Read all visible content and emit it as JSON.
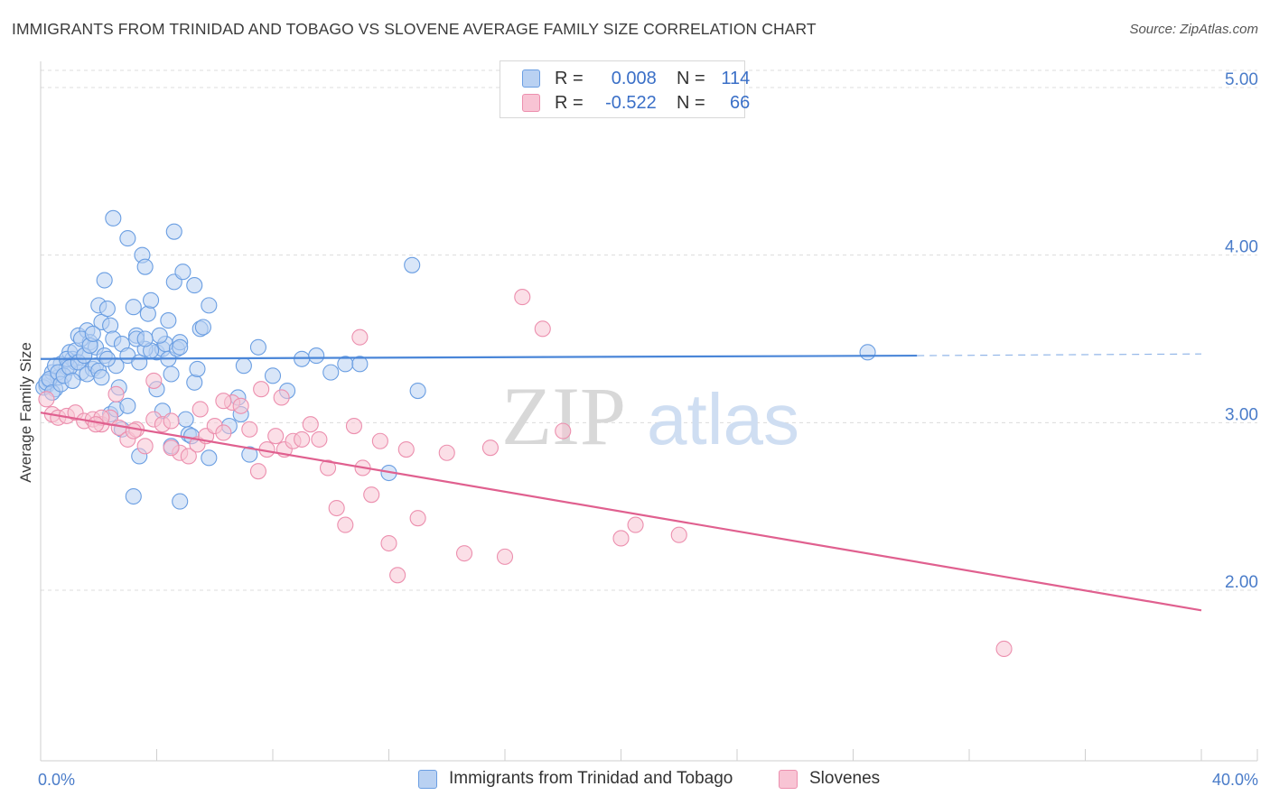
{
  "title": "IMMIGRANTS FROM TRINIDAD AND TOBAGO VS SLOVENE AVERAGE FAMILY SIZE CORRELATION CHART",
  "source": "Source: ZipAtlas.com",
  "watermark": {
    "zip": "ZIP",
    "atlas": "atlas"
  },
  "legend": {
    "r_label": "R =",
    "n_label": "N =",
    "series": [
      {
        "r": "0.008",
        "n": "114",
        "fill": "#b9d1f2",
        "stroke": "#6a9ee2"
      },
      {
        "r": "-0.522",
        "n": "66",
        "fill": "#f8c4d4",
        "stroke": "#ec8fae"
      }
    ]
  },
  "chart_data": {
    "type": "scatter",
    "title": "IMMIGRANTS FROM TRINIDAD AND TOBAGO VS SLOVENE AVERAGE FAMILY SIZE CORRELATION CHART",
    "xlabel": "",
    "ylabel": "Average Family Size",
    "xlim": [
      0,
      40
    ],
    "ylim": [
      1.0,
      5.15
    ],
    "x_tick_labels": [
      "0.0%",
      "40.0%"
    ],
    "y_ticks": [
      2.0,
      3.0,
      4.0,
      5.0
    ],
    "y_tick_labels": [
      "2.00",
      "3.00",
      "4.00",
      "5.00"
    ],
    "grid": true,
    "legend_position": "top-center",
    "series": [
      {
        "name": "Immigrants from Trinidad and Tobago",
        "color": "#4a86d8",
        "fill": "#b9d1f2",
        "trend": {
          "x": [
            0,
            30.2
          ],
          "y": [
            3.38,
            3.4
          ],
          "dashed_to_x": 40,
          "dashed_y_end": 3.41
        },
        "points": [
          [
            0.2,
            3.22
          ],
          [
            0.3,
            3.25
          ],
          [
            0.4,
            3.3
          ],
          [
            0.5,
            3.2
          ],
          [
            0.6,
            3.27
          ],
          [
            0.7,
            3.35
          ],
          [
            0.8,
            3.28
          ],
          [
            0.9,
            3.33
          ],
          [
            1.0,
            3.42
          ],
          [
            1.1,
            3.38
          ],
          [
            1.2,
            3.36
          ],
          [
            1.3,
            3.52
          ],
          [
            1.4,
            3.3
          ],
          [
            1.5,
            3.4
          ],
          [
            1.6,
            3.55
          ],
          [
            1.7,
            3.48
          ],
          [
            1.8,
            3.32
          ],
          [
            1.9,
            3.45
          ],
          [
            2.0,
            3.7
          ],
          [
            2.1,
            3.6
          ],
          [
            2.2,
            3.85
          ],
          [
            2.3,
            3.68
          ],
          [
            2.4,
            3.58
          ],
          [
            2.5,
            3.5
          ],
          [
            2.6,
            3.34
          ],
          [
            2.7,
            3.21
          ],
          [
            2.8,
            3.47
          ],
          [
            3.0,
            3.4
          ],
          [
            3.2,
            3.69
          ],
          [
            3.3,
            3.52
          ],
          [
            3.4,
            3.36
          ],
          [
            3.5,
            4.0
          ],
          [
            3.6,
            3.93
          ],
          [
            3.7,
            3.65
          ],
          [
            3.8,
            3.73
          ],
          [
            4.0,
            3.42
          ],
          [
            4.2,
            3.44
          ],
          [
            4.3,
            3.47
          ],
          [
            4.4,
            3.38
          ],
          [
            4.5,
            3.29
          ],
          [
            4.6,
            3.84
          ],
          [
            4.7,
            3.44
          ],
          [
            4.9,
            3.9
          ],
          [
            5.0,
            3.02
          ],
          [
            5.1,
            2.93
          ],
          [
            5.3,
            3.24
          ],
          [
            5.4,
            3.32
          ],
          [
            5.5,
            3.56
          ],
          [
            5.6,
            3.57
          ],
          [
            5.8,
            3.7
          ],
          [
            2.5,
            4.22
          ],
          [
            3.0,
            4.1
          ],
          [
            3.2,
            2.56
          ],
          [
            3.4,
            2.8
          ],
          [
            4.0,
            3.2
          ],
          [
            4.2,
            3.07
          ],
          [
            4.5,
            2.86
          ],
          [
            4.8,
            2.53
          ],
          [
            5.2,
            2.92
          ],
          [
            5.3,
            3.82
          ],
          [
            5.8,
            2.79
          ],
          [
            6.5,
            2.98
          ],
          [
            6.8,
            3.15
          ],
          [
            6.9,
            3.05
          ],
          [
            7.0,
            3.34
          ],
          [
            7.2,
            2.81
          ],
          [
            7.5,
            3.45
          ],
          [
            8.0,
            3.28
          ],
          [
            8.5,
            3.19
          ],
          [
            9.0,
            3.38
          ],
          [
            9.5,
            3.4
          ],
          [
            10.0,
            3.3
          ],
          [
            10.5,
            3.35
          ],
          [
            11.0,
            3.35
          ],
          [
            12.0,
            2.7
          ],
          [
            12.8,
            3.94
          ],
          [
            13.0,
            3.19
          ],
          [
            0.1,
            3.21
          ],
          [
            0.2,
            3.24
          ],
          [
            0.3,
            3.26
          ],
          [
            0.4,
            3.18
          ],
          [
            0.5,
            3.34
          ],
          [
            0.6,
            3.3
          ],
          [
            0.7,
            3.23
          ],
          [
            0.8,
            3.28
          ],
          [
            0.9,
            3.38
          ],
          [
            1.0,
            3.33
          ],
          [
            1.1,
            3.25
          ],
          [
            1.2,
            3.43
          ],
          [
            1.3,
            3.36
          ],
          [
            1.4,
            3.5
          ],
          [
            1.5,
            3.4
          ],
          [
            1.6,
            3.29
          ],
          [
            1.7,
            3.46
          ],
          [
            1.8,
            3.53
          ],
          [
            1.9,
            3.34
          ],
          [
            2.0,
            3.31
          ],
          [
            2.1,
            3.27
          ],
          [
            2.2,
            3.4
          ],
          [
            2.3,
            3.38
          ],
          [
            2.4,
            3.05
          ],
          [
            2.6,
            3.08
          ],
          [
            2.8,
            2.96
          ],
          [
            3.0,
            3.1
          ],
          [
            3.6,
            3.44
          ],
          [
            3.8,
            3.43
          ],
          [
            4.1,
            3.52
          ],
          [
            4.4,
            3.61
          ],
          [
            4.6,
            4.14
          ],
          [
            4.8,
            3.48
          ],
          [
            3.3,
            3.5
          ],
          [
            3.6,
            3.5
          ],
          [
            4.8,
            3.45
          ],
          [
            28.5,
            3.42
          ]
        ]
      },
      {
        "name": "Slovenes",
        "color": "#e0608f",
        "fill": "#f8c4d4",
        "trend": {
          "x": [
            0,
            40
          ],
          "y": [
            3.06,
            1.88
          ]
        },
        "points": [
          [
            0.2,
            3.14
          ],
          [
            0.4,
            3.05
          ],
          [
            0.6,
            3.03
          ],
          [
            0.9,
            3.04
          ],
          [
            1.2,
            3.06
          ],
          [
            1.5,
            3.01
          ],
          [
            1.8,
            3.02
          ],
          [
            2.1,
            2.99
          ],
          [
            2.4,
            3.03
          ],
          [
            2.7,
            2.97
          ],
          [
            3.0,
            2.9
          ],
          [
            3.3,
            2.96
          ],
          [
            3.6,
            2.86
          ],
          [
            3.9,
            3.02
          ],
          [
            4.2,
            2.99
          ],
          [
            4.5,
            3.01
          ],
          [
            4.8,
            2.82
          ],
          [
            5.1,
            2.8
          ],
          [
            5.4,
            2.87
          ],
          [
            5.7,
            2.92
          ],
          [
            6.0,
            2.98
          ],
          [
            6.3,
            2.94
          ],
          [
            6.6,
            3.12
          ],
          [
            6.9,
            3.1
          ],
          [
            7.2,
            2.96
          ],
          [
            7.5,
            2.71
          ],
          [
            7.8,
            2.84
          ],
          [
            8.1,
            2.92
          ],
          [
            8.4,
            2.84
          ],
          [
            8.7,
            2.89
          ],
          [
            9.0,
            2.9
          ],
          [
            9.3,
            2.99
          ],
          [
            9.6,
            2.9
          ],
          [
            9.9,
            2.73
          ],
          [
            10.2,
            2.49
          ],
          [
            10.5,
            2.39
          ],
          [
            10.8,
            2.98
          ],
          [
            11.1,
            2.73
          ],
          [
            11.4,
            2.57
          ],
          [
            11.7,
            2.89
          ],
          [
            12.0,
            2.28
          ],
          [
            12.3,
            2.09
          ],
          [
            12.6,
            2.84
          ],
          [
            13.0,
            2.43
          ],
          [
            14.0,
            2.82
          ],
          [
            14.6,
            2.22
          ],
          [
            15.5,
            2.85
          ],
          [
            16.0,
            2.2
          ],
          [
            18.0,
            2.95
          ],
          [
            20.0,
            2.31
          ],
          [
            20.5,
            2.39
          ],
          [
            17.3,
            3.56
          ],
          [
            16.6,
            3.75
          ],
          [
            11.0,
            3.51
          ],
          [
            6.3,
            3.13
          ],
          [
            5.5,
            3.08
          ],
          [
            3.9,
            3.25
          ],
          [
            2.6,
            3.17
          ],
          [
            7.6,
            3.2
          ],
          [
            8.3,
            3.15
          ],
          [
            2.1,
            3.03
          ],
          [
            1.9,
            2.99
          ],
          [
            4.5,
            2.85
          ],
          [
            3.2,
            2.95
          ],
          [
            22.0,
            2.33
          ],
          [
            33.2,
            1.65
          ]
        ]
      }
    ]
  },
  "bottom_legend": [
    {
      "label": "Immigrants from Trinidad and Tobago",
      "fill": "#b9d1f2",
      "stroke": "#6a9ee2"
    },
    {
      "label": "Slovenes",
      "fill": "#f8c4d4",
      "stroke": "#ec8fae"
    }
  ]
}
